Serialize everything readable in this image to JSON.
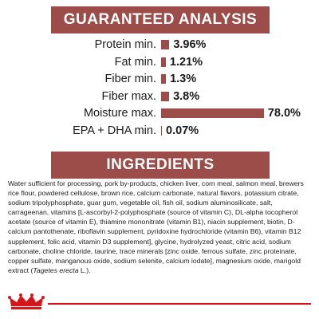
{
  "guaranteed_analysis": {
    "title": "GUARANTEED ANALYSIS",
    "rows": [
      {
        "label": "Protein min.",
        "value": "3.96%",
        "percent": 3.96
      },
      {
        "label": "Fat min.",
        "value": "1.21%",
        "percent": 1.21
      },
      {
        "label": "Fiber min.",
        "value": "1.3%",
        "percent": 1.3
      },
      {
        "label": "Fiber max.",
        "value": "3.8%",
        "percent": 3.8
      },
      {
        "label": "Moisture max.",
        "value": "78.0%",
        "percent": 78.0
      },
      {
        "label": "EPA + DHA min.",
        "value": "0.07%",
        "percent": 0.07
      }
    ]
  },
  "ingredients": {
    "title": "INGREDIENTS",
    "text_before_italic": "Water sufficient for processing, pork by-products, chicken liver, corn meal, salmon meal, brewers rice flour, powdered cellulose, brown rice, calcium carbonate, natural flavors, potassium citrate, sodium tripolyphosphate, guar gum, vegetable oil, fish oil, sodium aluminosilicate, salt, carrageenan, vitamins [L-ascorbyl-2-polyphosphate (source of vitamin C), DL-alpha tocopherol acetate (source of vitamin E), thiamine mononitrate (vitamin B1), niacin supplement, biotin, D-calcium pantothenate, riboflavin supplement, pyridoxine hydrochloride (vitamin B6), vitamin B12 supplement, folic acid, vitamin D3 supplement], glycine, hydrolyzed yeast, citric acid, sodium carbonate, choline chloride, taurine, trace minerals [zinc oxide, ferrous sulfate, zinc proteinate, copper sulfate, manganous oxide, sodium selenite, calcium iodate], magnesium oxide, marigold extract (",
    "italic": "Tagetes erecta",
    "text_after_italic": " L.)."
  },
  "colors": {
    "accent": "#9c4d4a",
    "brand_red": "#d4161c"
  },
  "icons": {
    "brand_logo": "crown-logo-icon"
  }
}
